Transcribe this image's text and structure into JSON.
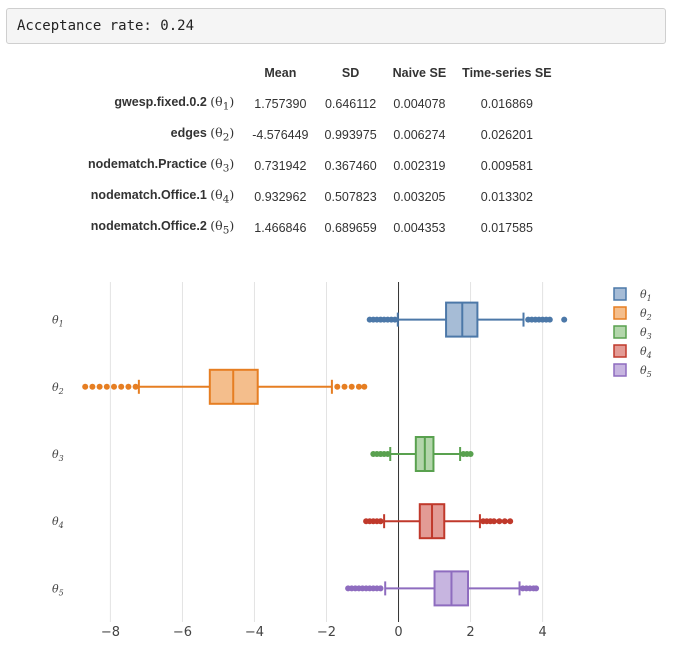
{
  "output": {
    "text": "Acceptance rate: 0.24"
  },
  "table": {
    "columns": [
      "Mean",
      "SD",
      "Naive SE",
      "Time-series SE"
    ],
    "rows": [
      {
        "name": "gwesp.fixed.0.2",
        "symbol": "(θ",
        "sub": "1",
        "close": ")",
        "values": [
          "1.757390",
          "0.646112",
          "0.004078",
          "0.016869"
        ]
      },
      {
        "name": "edges",
        "symbol": "(θ",
        "sub": "2",
        "close": ")",
        "values": [
          "-4.576449",
          "0.993975",
          "0.006274",
          "0.026201"
        ]
      },
      {
        "name": "nodematch.Practice",
        "symbol": "(θ",
        "sub": "3",
        "close": ")",
        "values": [
          "0.731942",
          "0.367460",
          "0.002319",
          "0.009581"
        ]
      },
      {
        "name": "nodematch.Office.1",
        "symbol": "(θ",
        "sub": "4",
        "close": ")",
        "values": [
          "0.932962",
          "0.507823",
          "0.003205",
          "0.013302"
        ]
      },
      {
        "name": "nodematch.Office.2",
        "symbol": "(θ",
        "sub": "5",
        "close": ")",
        "values": [
          "1.466846",
          "0.689659",
          "0.004353",
          "0.017585"
        ]
      }
    ]
  },
  "chart_data": {
    "type": "box",
    "orientation": "horizontal",
    "x_ticks": [
      -8,
      -6,
      -4,
      -2,
      0,
      2,
      4
    ],
    "x_tick_labels": [
      "−8",
      "−6",
      "−4",
      "−2",
      "0",
      "2",
      "4"
    ],
    "xlim": [
      -8.9,
      4.9
    ],
    "zero_line": 0,
    "legend_position": "top-right",
    "series": [
      {
        "name": "θ1",
        "label": "θ",
        "sub": "1",
        "color": "#4c78a8",
        "fill": "#a6bcd6",
        "q1": 1.32,
        "median": 1.77,
        "q3": 2.19,
        "whisker_low": -0.02,
        "whisker_high": 3.47,
        "outliers_low": [
          -0.1,
          -0.2,
          -0.3,
          -0.4,
          -0.5,
          -0.6,
          -0.7,
          -0.8
        ],
        "outliers_high": [
          3.6,
          3.7,
          3.8,
          3.9,
          4.0,
          4.1,
          4.2,
          4.6
        ]
      },
      {
        "name": "θ2",
        "label": "θ",
        "sub": "2",
        "color": "#e67e22",
        "fill": "#f4be8c",
        "q1": -5.24,
        "median": -4.59,
        "q3": -3.91,
        "whisker_low": -7.21,
        "whisker_high": -1.85,
        "outliers_low": [
          -7.3,
          -7.5,
          -7.7,
          -7.9,
          -8.1,
          -8.3,
          -8.5,
          -8.7
        ],
        "outliers_high": [
          -1.7,
          -1.5,
          -1.3,
          -1.1,
          -0.95
        ]
      },
      {
        "name": "θ3",
        "label": "θ",
        "sub": "3",
        "color": "#59a14f",
        "fill": "#b3d6ab",
        "q1": 0.48,
        "median": 0.73,
        "q3": 0.97,
        "whisker_low": -0.23,
        "whisker_high": 1.71,
        "outliers_low": [
          -0.3,
          -0.4,
          -0.5,
          -0.6,
          -0.7
        ],
        "outliers_high": [
          1.8,
          1.9,
          2.0
        ]
      },
      {
        "name": "θ4",
        "label": "θ",
        "sub": "4",
        "color": "#c0392b",
        "fill": "#e39b95",
        "q1": 0.59,
        "median": 0.93,
        "q3": 1.27,
        "whisker_low": -0.4,
        "whisker_high": 2.26,
        "outliers_low": [
          -0.5,
          -0.6,
          -0.7,
          -0.8,
          -0.9
        ],
        "outliers_high": [
          2.35,
          2.45,
          2.55,
          2.65,
          2.8,
          2.95,
          3.1
        ]
      },
      {
        "name": "θ5",
        "label": "θ",
        "sub": "5",
        "color": "#8e6cbf",
        "fill": "#c7b5e0",
        "q1": 1.0,
        "median": 1.47,
        "q3": 1.93,
        "whisker_low": -0.37,
        "whisker_high": 3.36,
        "outliers_low": [
          -0.5,
          -0.6,
          -0.7,
          -0.8,
          -0.9,
          -1.0,
          -1.1,
          -1.2,
          -1.3,
          -1.4
        ],
        "outliers_high": [
          3.45,
          3.55,
          3.65,
          3.75,
          3.82
        ]
      }
    ]
  }
}
